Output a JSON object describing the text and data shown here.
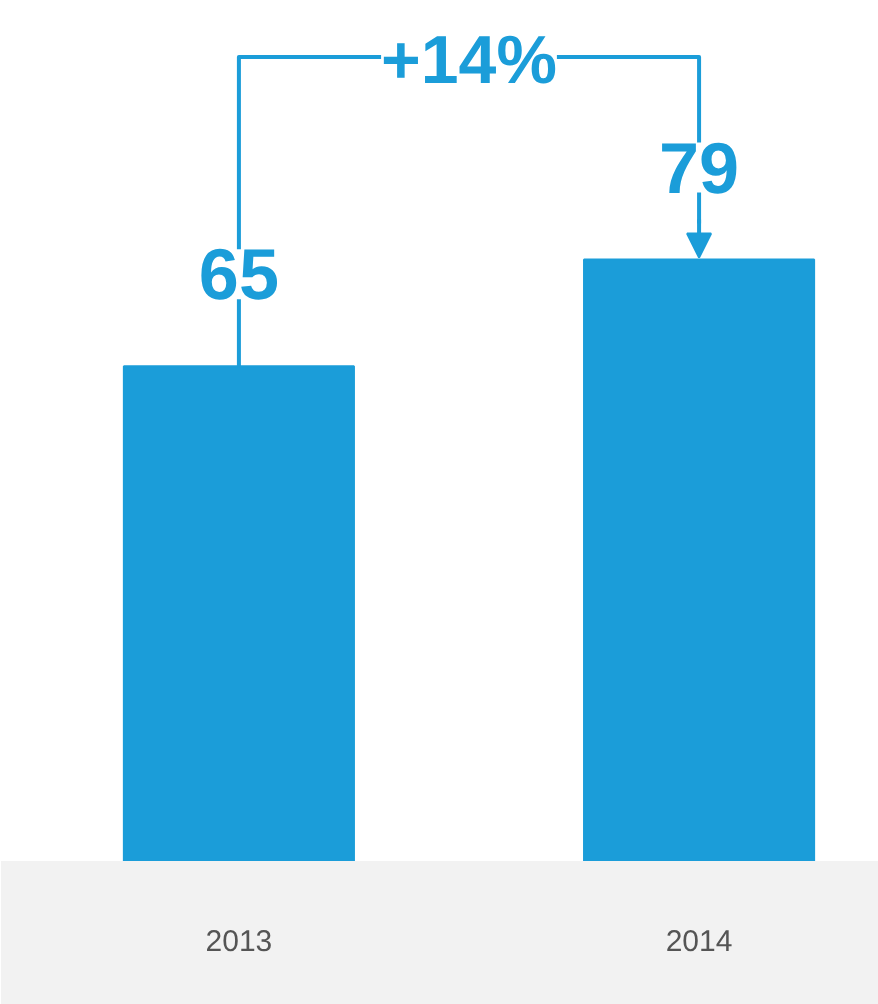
{
  "chart_data": {
    "type": "bar",
    "categories": [
      "2013",
      "2014"
    ],
    "values": [
      65,
      79
    ],
    "color": "#1b9dd9",
    "data_labels": true,
    "grid": false,
    "annotations": [
      "+14%"
    ]
  }
}
